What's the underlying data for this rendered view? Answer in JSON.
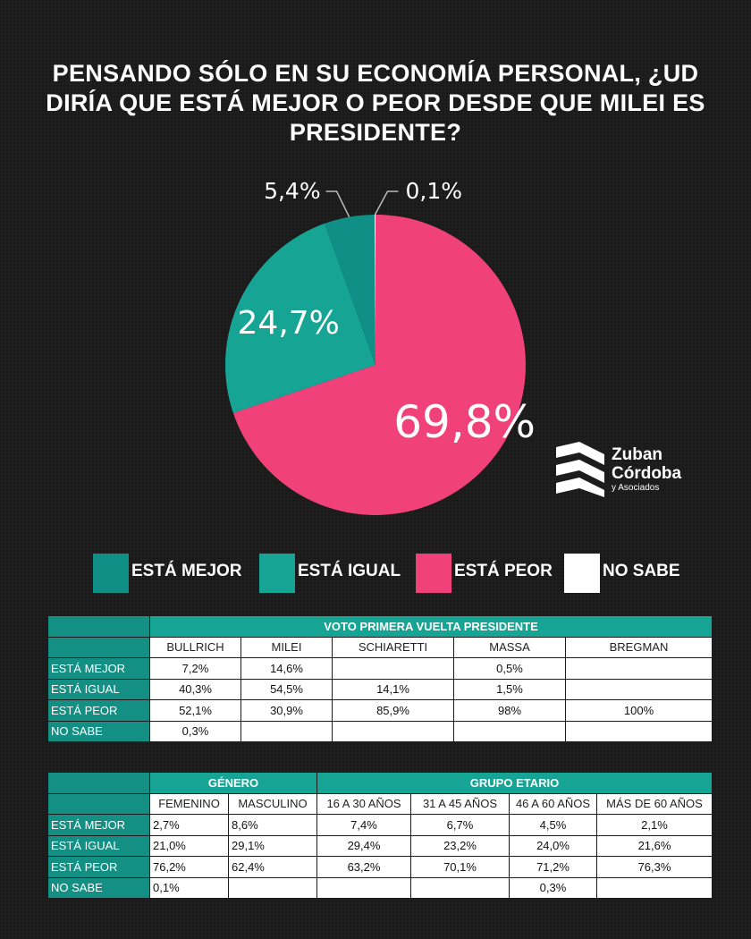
{
  "title": "PENSANDO SÓLO EN SU ECONOMÍA PERSONAL, ¿UD DIRÍA QUE ESTÁ MEJOR O PEOR DESDE QUE MILEI ES PRESIDENTE?",
  "chart_data": [
    {
      "type": "pie",
      "slices": [
        {
          "name": "ESTÁ MEJOR",
          "value": 5.4,
          "label": "5,4%",
          "color": "#0f8f86"
        },
        {
          "name": "ESTÁ IGUAL",
          "value": 24.7,
          "label": "24,7%",
          "color": "#16a594"
        },
        {
          "name": "ESTÁ PEOR",
          "value": 69.8,
          "label": "69,8%",
          "color": "#f0417a"
        },
        {
          "name": "NO SABE",
          "value": 0.1,
          "label": "0,1%",
          "color": "#ffffff"
        }
      ]
    },
    {
      "type": "table",
      "group_header": "VOTO PRIMERA VUELTA PRESIDENTE",
      "columns": [
        "BULLRICH",
        "MILEI",
        "SCHIARETTI",
        "MASSA",
        "BREGMAN"
      ],
      "rows": [
        {
          "label": "ESTÁ MEJOR",
          "values": [
            "7,2%",
            "14,6%",
            "",
            "0,5%",
            ""
          ]
        },
        {
          "label": "ESTÁ IGUAL",
          "values": [
            "40,3%",
            "54,5%",
            "14,1%",
            "1,5%",
            ""
          ]
        },
        {
          "label": "ESTÁ PEOR",
          "values": [
            "52,1%",
            "30,9%",
            "85,9%",
            "98%",
            "100%"
          ]
        },
        {
          "label": "NO SABE",
          "values": [
            "0,3%",
            "",
            "",
            "",
            ""
          ]
        }
      ]
    },
    {
      "type": "table",
      "group_headers": [
        {
          "label": "GÉNERO",
          "span": 2
        },
        {
          "label": "GRUPO ETARIO",
          "span": 4
        }
      ],
      "columns": [
        "FEMENINO",
        "MASCULINO",
        "16 A 30 AÑOS",
        "31 A 45 AÑOS",
        "46 A 60 AÑOS",
        "MÁS DE 60 AÑOS"
      ],
      "rows": [
        {
          "label": "ESTÁ MEJOR",
          "values": [
            "2,7%",
            "8,6%",
            "7,4%",
            "6,7%",
            "4,5%",
            "2,1%"
          ]
        },
        {
          "label": "ESTÁ IGUAL",
          "values": [
            "21,0%",
            "29,1%",
            "29,4%",
            "23,2%",
            "24,0%",
            "21,6%"
          ]
        },
        {
          "label": "ESTÁ PEOR",
          "values": [
            "76,2%",
            "62,4%",
            "63,2%",
            "70,1%",
            "71,2%",
            "76,3%"
          ]
        },
        {
          "label": "NO SABE",
          "values": [
            "0,1%",
            "",
            "",
            "",
            "0,3%",
            ""
          ]
        }
      ]
    }
  ],
  "logo": {
    "line1": "Zuban",
    "line2": "Córdoba",
    "sub": "y Asociados",
    "icon": "stacked-stripes-logo-icon"
  }
}
